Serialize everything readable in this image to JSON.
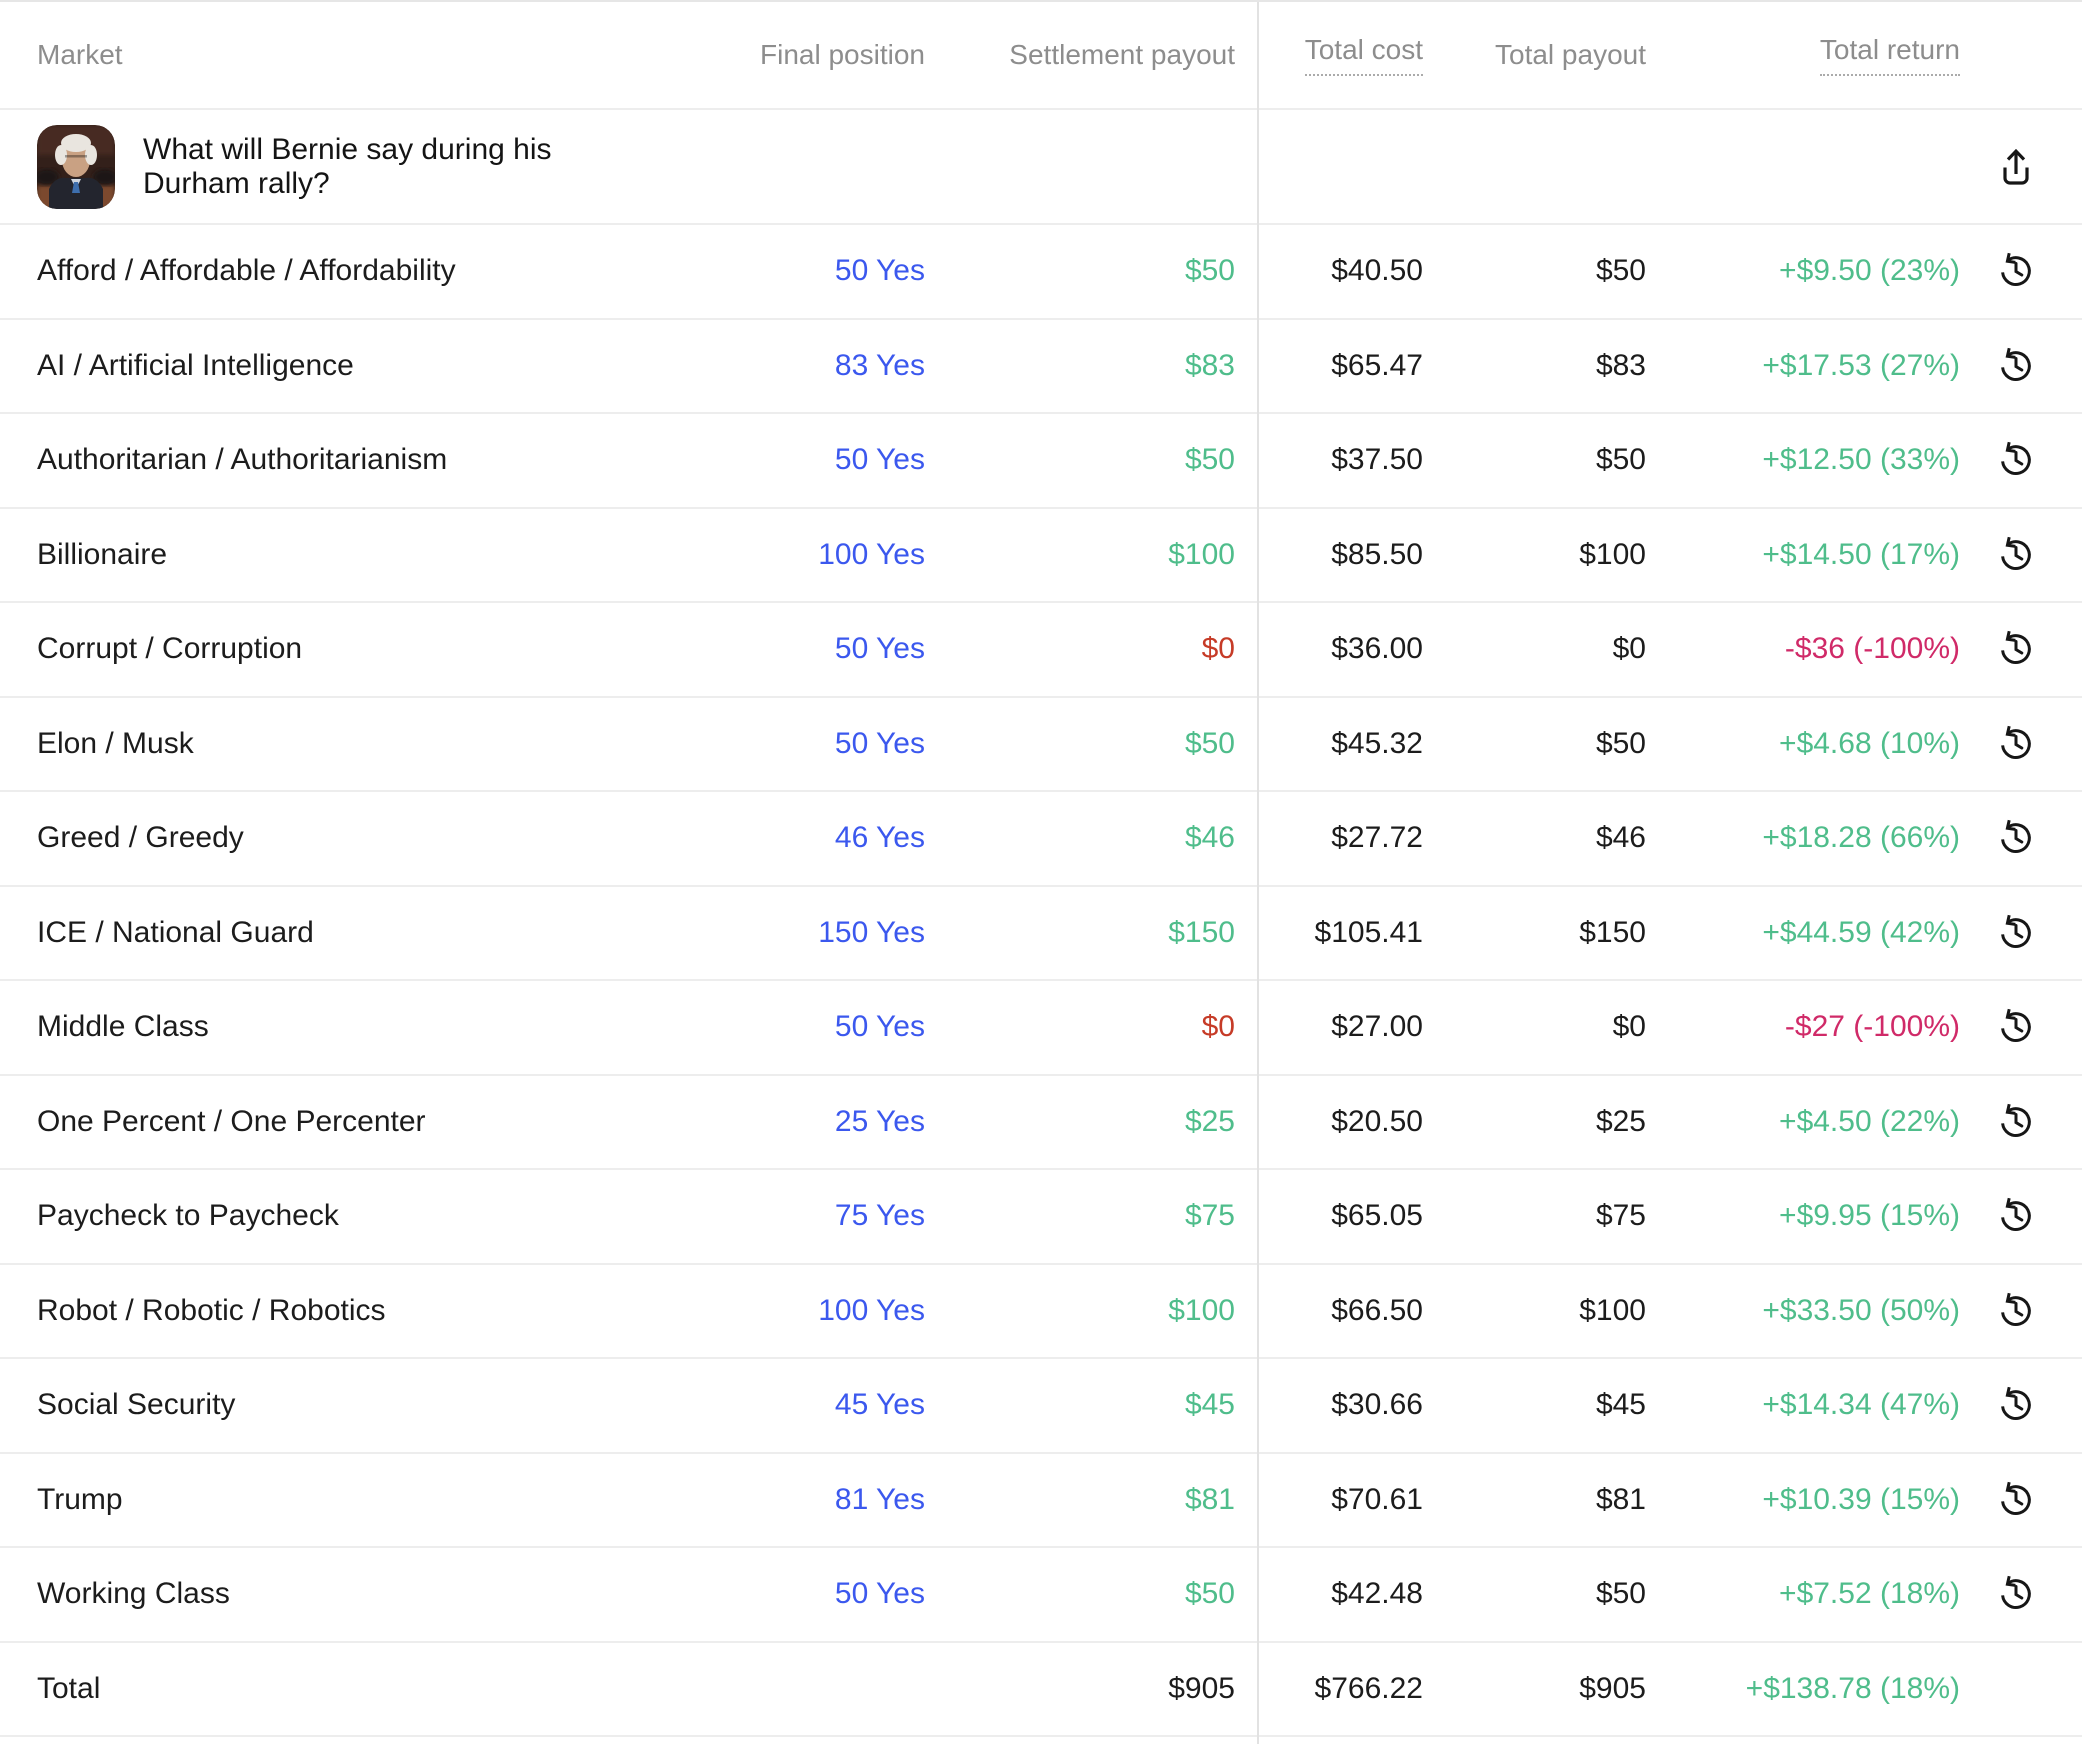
{
  "header": {
    "market": "Market",
    "final_position": "Final position",
    "settlement_payout": "Settlement payout",
    "total_cost": "Total cost",
    "total_payout": "Total payout",
    "total_return": "Total return"
  },
  "group": {
    "question": "What will Bernie say during his Durham rally?",
    "avatar": "bernie-sanders-photo",
    "share_icon": "share-icon"
  },
  "rows": [
    {
      "market": "Afford / Affordable / Affordability",
      "position": "50 Yes",
      "settlement": "$50",
      "settlement_tone": "gain",
      "cost": "$40.50",
      "payout": "$50",
      "return": "+$9.50 (23%)",
      "return_tone": "gain"
    },
    {
      "market": "AI / Artificial Intelligence",
      "position": "83 Yes",
      "settlement": "$83",
      "settlement_tone": "gain",
      "cost": "$65.47",
      "payout": "$83",
      "return": "+$17.53 (27%)",
      "return_tone": "gain"
    },
    {
      "market": "Authoritarian / Authoritarianism",
      "position": "50 Yes",
      "settlement": "$50",
      "settlement_tone": "gain",
      "cost": "$37.50",
      "payout": "$50",
      "return": "+$12.50 (33%)",
      "return_tone": "gain"
    },
    {
      "market": "Billionaire",
      "position": "100 Yes",
      "settlement": "$100",
      "settlement_tone": "gain",
      "cost": "$85.50",
      "payout": "$100",
      "return": "+$14.50 (17%)",
      "return_tone": "gain"
    },
    {
      "market": "Corrupt / Corruption",
      "position": "50 Yes",
      "settlement": "$0",
      "settlement_tone": "loss",
      "cost": "$36.00",
      "payout": "$0",
      "return": "-$36 (-100%)",
      "return_tone": "loss"
    },
    {
      "market": "Elon / Musk",
      "position": "50 Yes",
      "settlement": "$50",
      "settlement_tone": "gain",
      "cost": "$45.32",
      "payout": "$50",
      "return": "+$4.68 (10%)",
      "return_tone": "gain"
    },
    {
      "market": "Greed / Greedy",
      "position": "46 Yes",
      "settlement": "$46",
      "settlement_tone": "gain",
      "cost": "$27.72",
      "payout": "$46",
      "return": "+$18.28 (66%)",
      "return_tone": "gain"
    },
    {
      "market": "ICE / National Guard",
      "position": "150 Yes",
      "settlement": "$150",
      "settlement_tone": "gain",
      "cost": "$105.41",
      "payout": "$150",
      "return": "+$44.59 (42%)",
      "return_tone": "gain"
    },
    {
      "market": "Middle Class",
      "position": "50 Yes",
      "settlement": "$0",
      "settlement_tone": "loss",
      "cost": "$27.00",
      "payout": "$0",
      "return": "-$27 (-100%)",
      "return_tone": "loss"
    },
    {
      "market": "One Percent / One Percenter",
      "position": "25 Yes",
      "settlement": "$25",
      "settlement_tone": "gain",
      "cost": "$20.50",
      "payout": "$25",
      "return": "+$4.50 (22%)",
      "return_tone": "gain"
    },
    {
      "market": "Paycheck to Paycheck",
      "position": "75 Yes",
      "settlement": "$75",
      "settlement_tone": "gain",
      "cost": "$65.05",
      "payout": "$75",
      "return": "+$9.95 (15%)",
      "return_tone": "gain"
    },
    {
      "market": "Robot / Robotic / Robotics",
      "position": "100 Yes",
      "settlement": "$100",
      "settlement_tone": "gain",
      "cost": "$66.50",
      "payout": "$100",
      "return": "+$33.50 (50%)",
      "return_tone": "gain"
    },
    {
      "market": "Social Security",
      "position": "45 Yes",
      "settlement": "$45",
      "settlement_tone": "gain",
      "cost": "$30.66",
      "payout": "$45",
      "return": "+$14.34 (47%)",
      "return_tone": "gain"
    },
    {
      "market": "Trump",
      "position": "81 Yes",
      "settlement": "$81",
      "settlement_tone": "gain",
      "cost": "$70.61",
      "payout": "$81",
      "return": "+$10.39 (15%)",
      "return_tone": "gain"
    },
    {
      "market": "Working Class",
      "position": "50 Yes",
      "settlement": "$50",
      "settlement_tone": "gain",
      "cost": "$42.48",
      "payout": "$50",
      "return": "+$7.52 (18%)",
      "return_tone": "gain"
    }
  ],
  "total": {
    "label": "Total",
    "settlement": "$905",
    "cost": "$766.22",
    "payout": "$905",
    "return": "+$138.78 (18%)",
    "return_tone": "gain"
  },
  "icons": {
    "share": "share-icon",
    "history": "history-icon"
  },
  "colors": {
    "accent_blue": "#3b58ee",
    "gain_green": "#4fbd8b",
    "loss_red": "#c63b27",
    "loss_rose": "#d02a68",
    "header_gray": "#8d8d8d",
    "text_black": "#1c1c1c",
    "row_border": "#ededed",
    "divider": "#e2e2e2"
  }
}
